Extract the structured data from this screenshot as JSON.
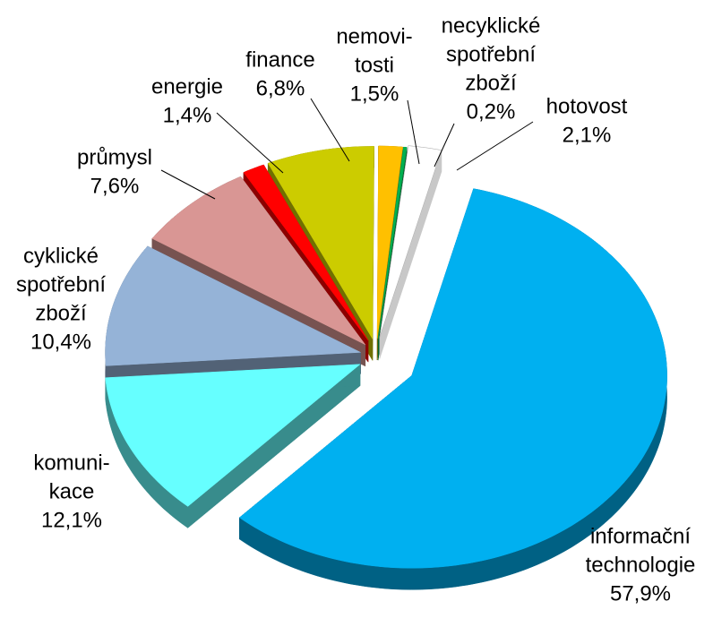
{
  "chart_data": {
    "type": "pie",
    "categories": [
      [
        "informační",
        "technologie"
      ],
      [
        "komuni-",
        "kace"
      ],
      [
        "cyklické",
        "spotřební",
        "zboží"
      ],
      [
        "průmysl"
      ],
      [
        "energie"
      ],
      [
        "finance"
      ],
      [
        "nemovi-",
        "tosti"
      ],
      [
        "necyklické",
        "spotřební",
        "zboží"
      ],
      [
        "hotovost"
      ]
    ],
    "values": [
      57.9,
      12.1,
      10.4,
      7.6,
      1.4,
      6.8,
      1.5,
      0.2,
      2.1
    ],
    "value_labels": [
      "57,9%",
      "12,1%",
      "10,4%",
      "7,6%",
      "1,4%",
      "6,8%",
      "1,5%",
      "0,2%",
      "2,1%"
    ],
    "colors": [
      "#00b0f0",
      "#66ffff",
      "#95b3d7",
      "#d99694",
      "#ff0000",
      "#cccc00",
      "#ffc000",
      "#00b050",
      "#ffffff"
    ]
  }
}
